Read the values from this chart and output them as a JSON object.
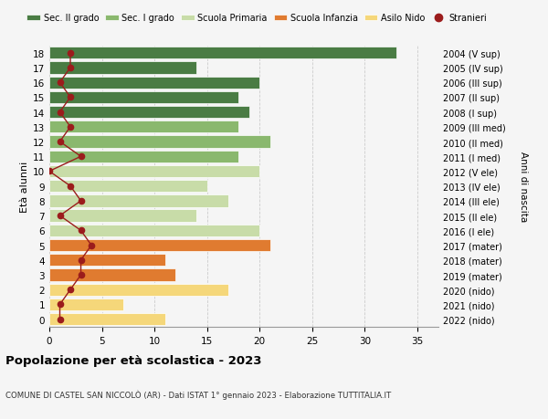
{
  "ages": [
    0,
    1,
    2,
    3,
    4,
    5,
    6,
    7,
    8,
    9,
    10,
    11,
    12,
    13,
    14,
    15,
    16,
    17,
    18
  ],
  "bar_values": [
    11,
    7,
    17,
    12,
    11,
    21,
    20,
    14,
    17,
    15,
    20,
    18,
    21,
    18,
    19,
    18,
    20,
    14,
    33
  ],
  "stranieri": [
    1,
    1,
    2,
    3,
    3,
    4,
    3,
    1,
    3,
    2,
    0,
    3,
    1,
    2,
    1,
    2,
    1,
    2,
    2
  ],
  "right_labels": [
    "2022 (nido)",
    "2021 (nido)",
    "2020 (nido)",
    "2019 (mater)",
    "2018 (mater)",
    "2017 (mater)",
    "2016 (I ele)",
    "2015 (II ele)",
    "2014 (III ele)",
    "2013 (IV ele)",
    "2012 (V ele)",
    "2011 (I med)",
    "2010 (II med)",
    "2009 (III med)",
    "2008 (I sup)",
    "2007 (II sup)",
    "2006 (III sup)",
    "2005 (IV sup)",
    "2004 (V sup)"
  ],
  "bar_colors": [
    "#f5d77a",
    "#f5d77a",
    "#f5d77a",
    "#e07b30",
    "#e07b30",
    "#e07b30",
    "#c8dca8",
    "#c8dca8",
    "#c8dca8",
    "#c8dca8",
    "#c8dca8",
    "#8ab86e",
    "#8ab86e",
    "#8ab86e",
    "#4a7c44",
    "#4a7c44",
    "#4a7c44",
    "#4a7c44",
    "#4a7c44"
  ],
  "stranieri_color": "#9b1c1c",
  "stranieri_line_color": "#9b1c1c",
  "legend_labels": [
    "Sec. II grado",
    "Sec. I grado",
    "Scuola Primaria",
    "Scuola Infanzia",
    "Asilo Nido",
    "Stranieri"
  ],
  "legend_colors": [
    "#4a7c44",
    "#8ab86e",
    "#c8dca8",
    "#e07b30",
    "#f5d77a",
    "#9b1c1c"
  ],
  "ylabel": "Età alunni",
  "ylabel_right": "Anni di nascita",
  "title": "Popolazione per età scolastica - 2023",
  "subtitle": "COMUNE DI CASTEL SAN NICCOLÒ (AR) - Dati ISTAT 1° gennaio 2023 - Elaborazione TUTTITALIA.IT",
  "xlim": [
    0,
    37
  ],
  "ylim": [
    -0.5,
    18.5
  ],
  "bar_height": 0.82,
  "background_color": "#f5f5f5",
  "grid_color": "#cccccc"
}
